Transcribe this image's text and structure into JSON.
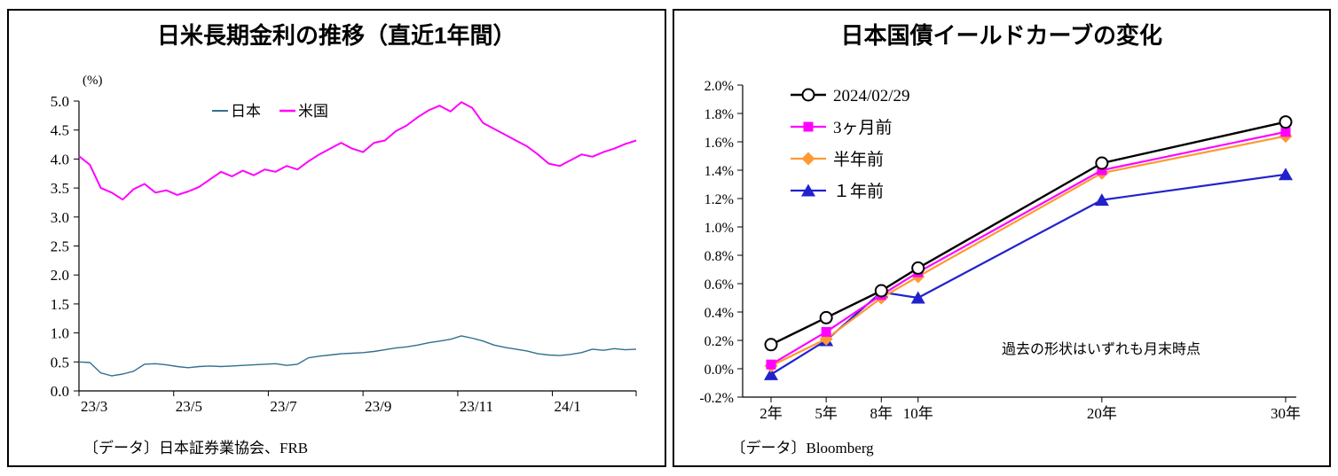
{
  "left_panel": {
    "title": "日米長期金利の推移（直近1年間）",
    "unit_label": "(%)",
    "source": "〔データ〕日本証券業協会、FRB"
  },
  "right_panel": {
    "title": "日本国債イールドカーブの変化",
    "annotation": "過去の形状はいずれも月末時点",
    "source": "〔データ〕Bloomberg"
  },
  "chart_data": [
    {
      "type": "line",
      "title": "日米長期金利の推移（直近1年間）",
      "ylabel": "(%)",
      "ylim": [
        0.0,
        5.0
      ],
      "ytick_step": 0.5,
      "grid": false,
      "legend_position": "top-center-inside",
      "x_axis": {
        "tick_labels": [
          "23/3",
          "23/5",
          "23/7",
          "23/9",
          "23/11",
          "24/1"
        ],
        "tick_positions_weeks": [
          0,
          8.67,
          17.33,
          26,
          34.67,
          43.33
        ],
        "total_weeks": 51
      },
      "series": [
        {
          "name": "日本",
          "color": "#31708E",
          "line_width": 1.4,
          "values": [
            0.5,
            0.49,
            0.31,
            0.26,
            0.29,
            0.34,
            0.46,
            0.47,
            0.45,
            0.42,
            0.4,
            0.42,
            0.43,
            0.42,
            0.43,
            0.44,
            0.45,
            0.46,
            0.47,
            0.44,
            0.46,
            0.57,
            0.6,
            0.62,
            0.64,
            0.65,
            0.66,
            0.68,
            0.71,
            0.74,
            0.76,
            0.79,
            0.83,
            0.86,
            0.89,
            0.95,
            0.91,
            0.86,
            0.79,
            0.75,
            0.72,
            0.69,
            0.64,
            0.62,
            0.61,
            0.63,
            0.66,
            0.72,
            0.7,
            0.73,
            0.71,
            0.72
          ]
        },
        {
          "name": "米国",
          "color": "#FF00FF",
          "line_width": 2.0,
          "values": [
            4.05,
            3.9,
            3.5,
            3.42,
            3.3,
            3.48,
            3.57,
            3.42,
            3.46,
            3.38,
            3.44,
            3.52,
            3.65,
            3.78,
            3.7,
            3.8,
            3.72,
            3.82,
            3.78,
            3.88,
            3.82,
            3.96,
            4.08,
            4.18,
            4.28,
            4.18,
            4.12,
            4.28,
            4.32,
            4.48,
            4.58,
            4.72,
            4.84,
            4.92,
            4.82,
            4.98,
            4.88,
            4.62,
            4.52,
            4.42,
            4.32,
            4.22,
            4.08,
            3.92,
            3.88,
            3.98,
            4.08,
            4.04,
            4.12,
            4.18,
            4.26,
            4.32
          ]
        }
      ],
      "source": "〔データ〕日本証券業協会、FRB"
    },
    {
      "type": "line",
      "title": "日本国債イールドカーブの変化",
      "x_years": [
        2,
        5,
        8,
        10,
        20,
        30
      ],
      "x_tick_labels": [
        "2年",
        "5年",
        "8年",
        "10年",
        "20年",
        "30年"
      ],
      "ylim": [
        -0.2,
        2.0
      ],
      "ytick_step": 0.2,
      "grid": false,
      "legend_position": "top-left-inside",
      "series": [
        {
          "name": "2024/02/29",
          "color": "#000000",
          "marker": "circle-open",
          "line_width": 2.4,
          "values": [
            0.17,
            0.36,
            0.55,
            0.71,
            1.45,
            1.74
          ]
        },
        {
          "name": "3ヶ月前",
          "color": "#FF00FF",
          "marker": "square",
          "line_width": 2.2,
          "values": [
            0.03,
            0.26,
            0.52,
            0.68,
            1.4,
            1.67
          ]
        },
        {
          "name": "半年前",
          "color": "#FF9933",
          "marker": "diamond",
          "line_width": 2.2,
          "values": [
            0.02,
            0.21,
            0.5,
            0.65,
            1.38,
            1.64
          ]
        },
        {
          "name": "１年前",
          "color": "#2222CC",
          "marker": "triangle",
          "line_width": 2.2,
          "values": [
            -0.04,
            0.2,
            0.54,
            0.5,
            1.19,
            1.37
          ]
        }
      ],
      "annotation": "過去の形状はいずれも月末時点",
      "source": "〔データ〕Bloomberg"
    }
  ]
}
